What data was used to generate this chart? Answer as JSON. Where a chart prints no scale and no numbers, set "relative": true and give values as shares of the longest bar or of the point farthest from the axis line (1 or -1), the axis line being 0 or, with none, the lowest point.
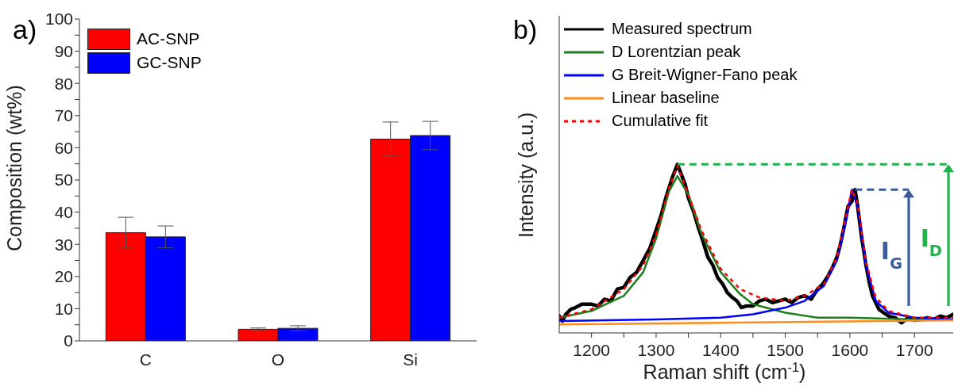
{
  "chart_data": [
    {
      "type": "bar",
      "title": "a)",
      "ylabel": "Composition (wt%)",
      "categories": [
        "C",
        "O",
        "Si"
      ],
      "legend": "top left",
      "ylim": [
        0,
        100
      ],
      "yticks": [
        0,
        {
          "value": 5,
          "label": null
        },
        10,
        {
          "value": 15,
          "label": null
        },
        20,
        {
          "value": 25,
          "label": null
        },
        30,
        {
          "value": 35,
          "label": null
        },
        40,
        {
          "value": 45,
          "label": null
        },
        50,
        {
          "value": 55,
          "label": null
        },
        60,
        {
          "value": 65,
          "label": null
        },
        70,
        {
          "value": 75,
          "label": null
        },
        80,
        {
          "value": 85,
          "label": null
        },
        90,
        {
          "value": 95,
          "label": null
        },
        100
      ],
      "series": [
        {
          "name": "AC-SNP",
          "color": "#ff0000",
          "values": [
            33.6,
            3.6,
            62.7
          ],
          "errors": [
            4.8,
            0.4,
            5.3
          ]
        },
        {
          "name": "GC-SNP",
          "color": "#0000ff",
          "values": [
            32.3,
            3.9,
            63.8
          ],
          "errors": [
            3.4,
            0.8,
            4.4
          ]
        }
      ]
    },
    {
      "type": "line",
      "title": "b)",
      "xlabel": "Raman shift (cm$^{-1}$)",
      "ylabel": "Intensity (a.u.)",
      "relative": true,
      "legend": "top left",
      "marker": "none",
      "xlim": [
        1150,
        1760
      ],
      "xticks": [
        1200,
        {
          "value": 1250,
          "label": null
        },
        1300,
        {
          "value": 1350,
          "label": null
        },
        1400,
        {
          "value": 1450,
          "label": null
        },
        1500,
        {
          "value": 1550,
          "label": null
        },
        1600,
        {
          "value": 1650,
          "label": null
        },
        1700
      ],
      "series": [
        {
          "name": "Measured spectrum",
          "color": "#000000",
          "x": [
            1150,
            1155,
            1160,
            1168,
            1175,
            1185,
            1200,
            1210,
            1220,
            1230,
            1240,
            1250,
            1260,
            1270,
            1280,
            1290,
            1300,
            1308,
            1315,
            1320,
            1325,
            1333,
            1340,
            1345,
            1350,
            1358,
            1365,
            1372,
            1380,
            1388,
            1395,
            1403,
            1410,
            1418,
            1425,
            1432,
            1440,
            1450,
            1460,
            1470,
            1480,
            1490,
            1500,
            1510,
            1520,
            1530,
            1540,
            1550,
            1558,
            1565,
            1572,
            1580,
            1585,
            1590,
            1597,
            1603,
            1608,
            1612,
            1618,
            1625,
            1630,
            1635,
            1645,
            1652,
            1660,
            1670,
            1680,
            1690,
            1700,
            1710,
            1720,
            1730,
            1740,
            1750,
            1760
          ],
          "values": [
            0.1,
            0.07,
            0.11,
            0.14,
            0.15,
            0.17,
            0.17,
            0.16,
            0.2,
            0.19,
            0.26,
            0.27,
            0.33,
            0.36,
            0.43,
            0.5,
            0.61,
            0.7,
            0.8,
            0.86,
            0.92,
            1.0,
            0.93,
            0.88,
            0.8,
            0.72,
            0.63,
            0.55,
            0.45,
            0.4,
            0.33,
            0.29,
            0.24,
            0.21,
            0.19,
            0.15,
            0.16,
            0.16,
            0.19,
            0.2,
            0.18,
            0.19,
            0.2,
            0.18,
            0.21,
            0.22,
            0.2,
            0.26,
            0.29,
            0.33,
            0.38,
            0.45,
            0.52,
            0.61,
            0.75,
            0.78,
            0.85,
            0.75,
            0.57,
            0.4,
            0.3,
            0.22,
            0.14,
            0.12,
            0.1,
            0.09,
            0.06,
            0.09,
            0.075,
            0.08,
            0.09,
            0.08,
            0.1,
            0.09,
            0.11
          ]
        },
        {
          "name": "D Lorentzian peak",
          "color": "#1e7d1e",
          "x": [
            1150,
            1200,
            1250,
            1280,
            1300,
            1320,
            1333,
            1350,
            1370,
            1400,
            1430,
            1450,
            1500,
            1550,
            1600,
            1700,
            1760
          ],
          "values": [
            0.09,
            0.13,
            0.22,
            0.36,
            0.56,
            0.84,
            0.93,
            0.82,
            0.59,
            0.36,
            0.23,
            0.17,
            0.12,
            0.09,
            0.09,
            0.08,
            0.08
          ]
        },
        {
          "name": "G Breit-Wigner-Fano peak",
          "color": "#0000ff",
          "x": [
            1150,
            1300,
            1400,
            1450,
            1500,
            1530,
            1560,
            1580,
            1595,
            1603,
            1612,
            1625,
            1640,
            1660,
            1700,
            1760
          ],
          "values": [
            0.07,
            0.08,
            0.09,
            0.11,
            0.15,
            0.19,
            0.28,
            0.43,
            0.68,
            0.85,
            0.75,
            0.4,
            0.19,
            0.12,
            0.09,
            0.08
          ]
        },
        {
          "name": "Linear baseline",
          "color": "#ff8c1a",
          "x": [
            1150,
            1760
          ],
          "values": [
            0.05,
            0.075
          ]
        },
        {
          "name": "Cumulative fit",
          "color": "#ff0000",
          "line_style": "dotted",
          "x": [
            1150,
            1200,
            1250,
            1280,
            1300,
            1320,
            1333,
            1350,
            1370,
            1400,
            1430,
            1460,
            1500,
            1530,
            1560,
            1580,
            1595,
            1603,
            1612,
            1625,
            1640,
            1660,
            1700,
            1760
          ],
          "values": [
            0.09,
            0.14,
            0.26,
            0.4,
            0.58,
            0.86,
            0.99,
            0.82,
            0.61,
            0.38,
            0.26,
            0.21,
            0.19,
            0.22,
            0.29,
            0.45,
            0.71,
            0.85,
            0.77,
            0.42,
            0.21,
            0.13,
            0.09,
            0.09
          ]
        }
      ],
      "ref_lines": [
        {
          "axis": "y",
          "value": 0.85,
          "color": "#3a5c9c",
          "line_style": "dashed"
        },
        {
          "axis": "y",
          "value": 1.0,
          "color": "#22b14c",
          "line_style": "dashed"
        }
      ],
      "annotations": [
        "I$_{G}$",
        "I$_{D}$"
      ]
    }
  ]
}
